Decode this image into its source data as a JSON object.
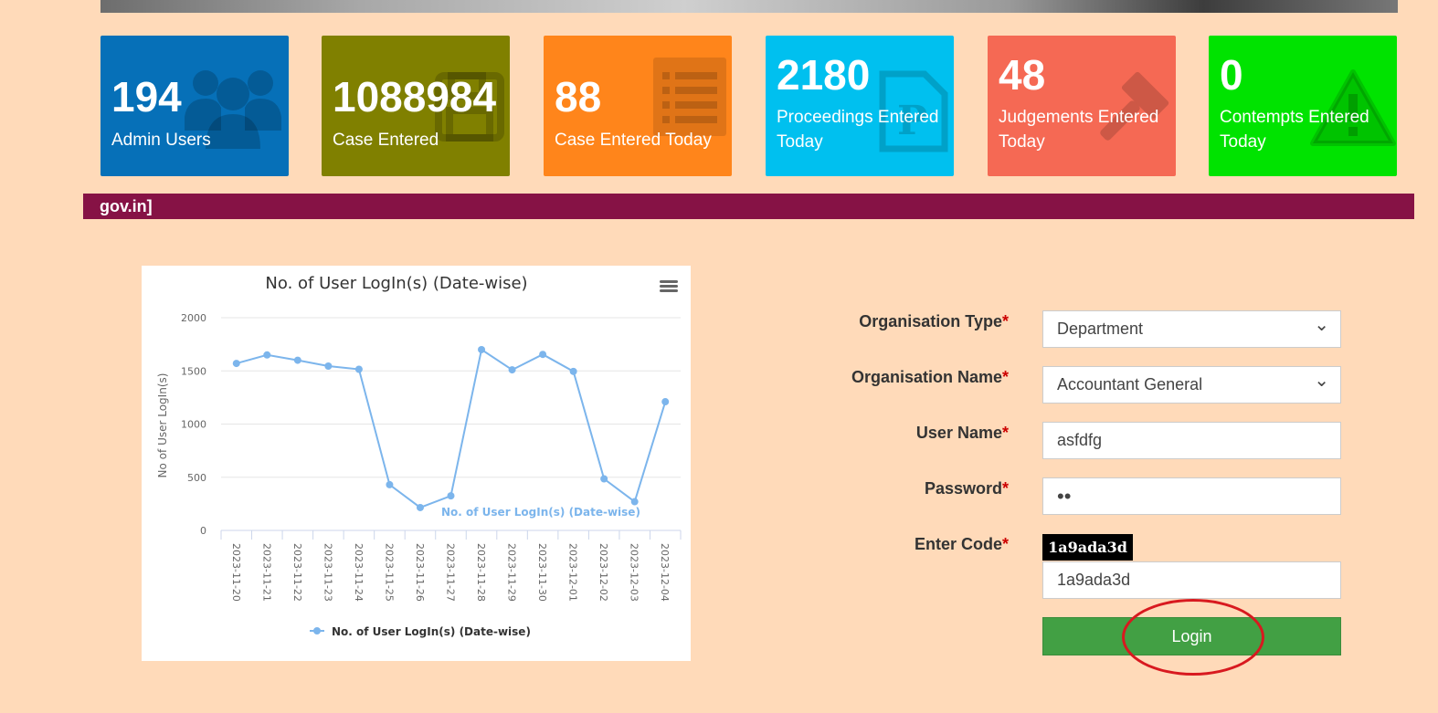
{
  "tiles": [
    {
      "number": "194",
      "label": "Admin Users",
      "color": "#0670b8",
      "icon": "users-icon"
    },
    {
      "number": "1088984",
      "label": "Case Entered",
      "color": "#808000",
      "icon": "save-icon"
    },
    {
      "number": "88",
      "label": "Case Entered Today",
      "color": "#ff851b",
      "icon": "list-icon"
    },
    {
      "number": "2180",
      "label": "Proceedings Entered Today",
      "color": "#00c0ef",
      "icon": "document-icon"
    },
    {
      "number": "48",
      "label": "Judgements Entered Today",
      "color": "#f56954",
      "icon": "gavel-icon"
    },
    {
      "number": "0",
      "label": "Contempts Entered Today",
      "color": "#00e300",
      "icon": "warning-icon"
    }
  ],
  "marquee": {
    "text": "gov.in]",
    "color": "#861245"
  },
  "chart_data": {
    "type": "line",
    "title": "No. of User LogIn(s) (Date-wise)",
    "ylabel": "No of User LogIn(s)",
    "xlabel": "",
    "ylim": [
      0,
      2000
    ],
    "yticks": [
      0,
      500,
      1000,
      1500,
      2000
    ],
    "categories": [
      "2023-11-20",
      "2023-11-21",
      "2023-11-22",
      "2023-11-23",
      "2023-11-24",
      "2023-11-25",
      "2023-11-26",
      "2023-11-27",
      "2023-11-28",
      "2023-11-29",
      "2023-11-30",
      "2023-12-01",
      "2023-12-02",
      "2023-12-03",
      "2023-12-04"
    ],
    "series": [
      {
        "name": "No. of User LogIn(s) (Date-wise)",
        "values": [
          1570,
          1650,
          1600,
          1545,
          1515,
          430,
          215,
          325,
          1700,
          1510,
          1655,
          1495,
          485,
          270,
          1210
        ],
        "color": "#7cb5ec"
      }
    ],
    "annotation": "No. of User LogIn(s) (Date-wise)",
    "legend": "bottom",
    "grid": true
  },
  "form": {
    "org_type_label": "Organisation Type",
    "org_type_value": "Department",
    "org_name_label": "Organisation Name",
    "org_name_value": "Accountant General",
    "username_label": "User Name",
    "username_value": "asfdfg",
    "password_label": "Password",
    "password_value": "••",
    "code_label": "Enter Code",
    "captcha_text": "1a9ada3d",
    "code_value": "1a9ada3d",
    "required_mark": "*",
    "login_label": "Login"
  }
}
